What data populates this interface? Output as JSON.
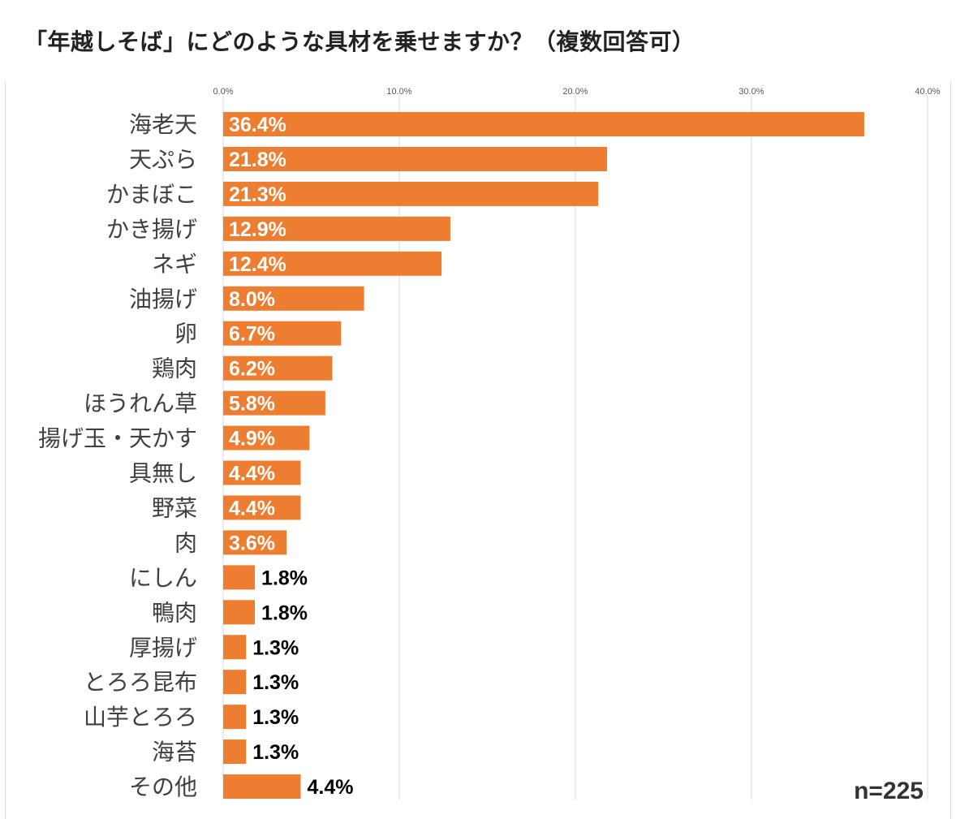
{
  "title": "「年越しそば」にどのような具材を乗せますか？（複数回答可）",
  "sample_size": "n=225",
  "colors": {
    "bar": "#ED7D31",
    "grid": "#D9D9D9",
    "tick_text": "#595959",
    "label_text": "#404040",
    "inside_value_text": "#FFFFFF",
    "outside_value_text": "#000000"
  },
  "chart_data": {
    "type": "bar",
    "orientation": "horizontal",
    "title": "「年越しそば」にどのような具材を乗せますか？（複数回答可）",
    "xlim": [
      0,
      40
    ],
    "xticks": [
      "0.0%",
      "10.0%",
      "20.0%",
      "30.0%",
      "40.0%"
    ],
    "grid": true,
    "categories": [
      "海老天",
      "天ぷら",
      "かまぼこ",
      "かき揚げ",
      "ネギ",
      "油揚げ",
      "卵",
      "鶏肉",
      "ほうれん草",
      "揚げ玉・天かす",
      "具無し",
      "野菜",
      "肉",
      "にしん",
      "鴨肉",
      "厚揚げ",
      "とろろ昆布",
      "山芋とろろ",
      "海苔",
      "その他"
    ],
    "values": [
      36.4,
      21.8,
      21.3,
      12.9,
      12.4,
      8.0,
      6.7,
      6.2,
      5.8,
      4.9,
      4.4,
      4.4,
      3.6,
      1.8,
      1.8,
      1.3,
      1.3,
      1.3,
      1.3,
      4.4
    ],
    "value_labels": [
      "36.4%",
      "21.8%",
      "21.3%",
      "12.9%",
      "12.4%",
      "8.0%",
      "6.7%",
      "6.2%",
      "5.8%",
      "4.9%",
      "4.4%",
      "4.4%",
      "3.6%",
      "1.8%",
      "1.8%",
      "1.3%",
      "1.3%",
      "1.3%",
      "1.3%",
      "4.4%"
    ],
    "label_outside": [
      false,
      false,
      false,
      false,
      false,
      false,
      false,
      false,
      false,
      false,
      false,
      false,
      false,
      true,
      true,
      true,
      true,
      true,
      true,
      true
    ]
  }
}
